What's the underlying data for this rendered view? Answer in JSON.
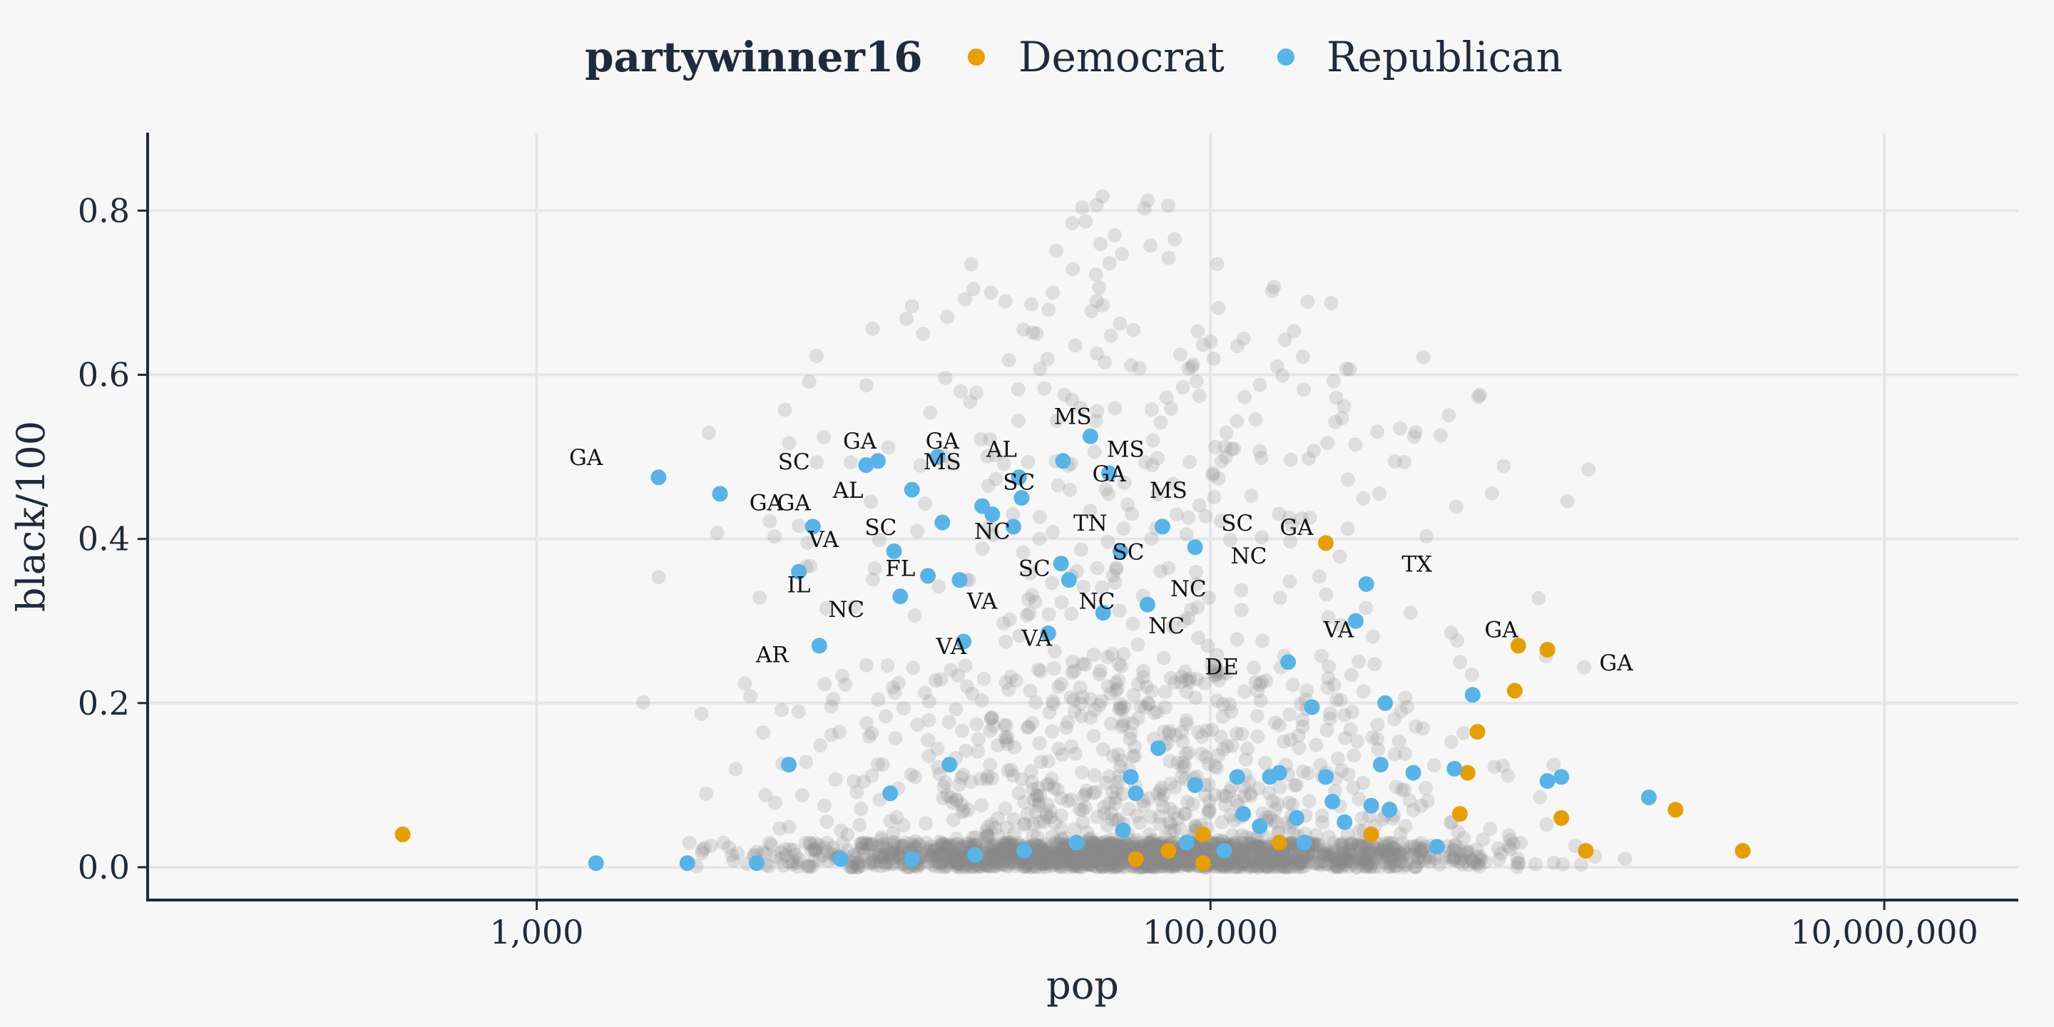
{
  "chart_data": {
    "type": "scatter",
    "title": "",
    "xlabel": "pop",
    "ylabel": "black/100",
    "x_scale": "log10",
    "xlim": [
      70,
      25000000
    ],
    "ylim": [
      -0.04,
      0.895
    ],
    "x_ticks": [
      1000,
      100000,
      10000000
    ],
    "x_tick_labels": [
      "1,000",
      "100,000",
      "10,000,000"
    ],
    "y_ticks": [
      0.0,
      0.2,
      0.4,
      0.6,
      0.8
    ],
    "y_tick_labels": [
      "0.0",
      "0.2",
      "0.4",
      "0.6",
      "0.8"
    ],
    "grid": true,
    "legend": {
      "title": "partywinner16",
      "position": "top",
      "entries": [
        {
          "label": "Democrat",
          "color": "#E69F00"
        },
        {
          "label": "Republican",
          "color": "#56B4E9"
        }
      ]
    },
    "background_color": "#888888",
    "series": [
      {
        "name": "Democrat",
        "color": "#E69F00",
        "points": [
          [
            400,
            0.04
          ],
          [
            60000,
            0.01
          ],
          [
            75000,
            0.02
          ],
          [
            95000,
            0.005
          ],
          [
            95000,
            0.04
          ],
          [
            160000,
            0.03
          ],
          [
            220000,
            0.395
          ],
          [
            300000,
            0.04
          ],
          [
            550000,
            0.065
          ],
          [
            580000,
            0.115
          ],
          [
            620000,
            0.165
          ],
          [
            800000,
            0.215
          ],
          [
            820000,
            0.27
          ],
          [
            1000000,
            0.265
          ],
          [
            1100000,
            0.06
          ],
          [
            1300000,
            0.02
          ],
          [
            2400000,
            0.07
          ],
          [
            3800000,
            0.02
          ]
        ]
      },
      {
        "name": "Republican",
        "color": "#56B4E9",
        "points": [
          [
            2300,
            0.475
          ],
          [
            3500,
            0.455
          ],
          [
            6000,
            0.36
          ],
          [
            6600,
            0.415
          ],
          [
            6900,
            0.27
          ],
          [
            5600,
            0.125
          ],
          [
            9500,
            0.49
          ],
          [
            10300,
            0.495
          ],
          [
            11500,
            0.385
          ],
          [
            12000,
            0.33
          ],
          [
            13000,
            0.46
          ],
          [
            14500,
            0.355
          ],
          [
            15500,
            0.5
          ],
          [
            16000,
            0.42
          ],
          [
            16800,
            0.125
          ],
          [
            11200,
            0.09
          ],
          [
            18000,
            0.35
          ],
          [
            18500,
            0.275
          ],
          [
            21000,
            0.44
          ],
          [
            22500,
            0.43
          ],
          [
            26000,
            0.415
          ],
          [
            27000,
            0.475
          ],
          [
            27500,
            0.45
          ],
          [
            33000,
            0.285
          ],
          [
            36500,
            0.495
          ],
          [
            36000,
            0.37
          ],
          [
            38000,
            0.35
          ],
          [
            44000,
            0.525
          ],
          [
            50000,
            0.48
          ],
          [
            48000,
            0.31
          ],
          [
            54000,
            0.385
          ],
          [
            58000,
            0.11
          ],
          [
            60000,
            0.09
          ],
          [
            65000,
            0.32
          ],
          [
            72000,
            0.415
          ],
          [
            70000,
            0.145
          ],
          [
            90000,
            0.39
          ],
          [
            90000,
            0.1
          ],
          [
            120000,
            0.11
          ],
          [
            125000,
            0.065
          ],
          [
            150000,
            0.11
          ],
          [
            170000,
            0.25
          ],
          [
            200000,
            0.195
          ],
          [
            220000,
            0.11
          ],
          [
            230000,
            0.08
          ],
          [
            250000,
            0.055
          ],
          [
            270000,
            0.3
          ],
          [
            290000,
            0.345
          ],
          [
            330000,
            0.2
          ],
          [
            320000,
            0.125
          ],
          [
            340000,
            0.07
          ],
          [
            400000,
            0.115
          ],
          [
            470000,
            0.025
          ],
          [
            530000,
            0.12
          ],
          [
            600000,
            0.21
          ],
          [
            1000000,
            0.105
          ],
          [
            1100000,
            0.11
          ],
          [
            2000000,
            0.085
          ],
          [
            1500,
            0.005
          ],
          [
            2800,
            0.005
          ],
          [
            4500,
            0.005
          ],
          [
            8000,
            0.01
          ],
          [
            13000,
            0.01
          ],
          [
            20000,
            0.015
          ],
          [
            28000,
            0.02
          ],
          [
            40000,
            0.03
          ],
          [
            55000,
            0.045
          ],
          [
            85000,
            0.03
          ],
          [
            110000,
            0.02
          ],
          [
            140000,
            0.05
          ],
          [
            180000,
            0.06
          ],
          [
            300000,
            0.075
          ],
          [
            160000,
            0.115
          ],
          [
            190000,
            0.03
          ]
        ]
      }
    ],
    "annotations": [
      {
        "text": "GA",
        "x": 1400,
        "y": 0.49
      },
      {
        "text": "GA",
        "x": 4800,
        "y": 0.435
      },
      {
        "text": "GA",
        "x": 9100,
        "y": 0.51
      },
      {
        "text": "GA",
        "x": 16000,
        "y": 0.51
      },
      {
        "text": "SC",
        "x": 5800,
        "y": 0.485
      },
      {
        "text": "MS",
        "x": 16000,
        "y": 0.485
      },
      {
        "text": "AL",
        "x": 8400,
        "y": 0.45
      },
      {
        "text": "AL",
        "x": 24000,
        "y": 0.5
      },
      {
        "text": "GA",
        "x": 5800,
        "y": 0.435
      },
      {
        "text": "MS",
        "x": 39000,
        "y": 0.54
      },
      {
        "text": "MS",
        "x": 56000,
        "y": 0.5
      },
      {
        "text": "SC",
        "x": 27000,
        "y": 0.46
      },
      {
        "text": "GA",
        "x": 50000,
        "y": 0.47
      },
      {
        "text": "MS",
        "x": 75000,
        "y": 0.45
      },
      {
        "text": "SC",
        "x": 10500,
        "y": 0.405
      },
      {
        "text": "NC",
        "x": 22500,
        "y": 0.4
      },
      {
        "text": "TN",
        "x": 44000,
        "y": 0.41
      },
      {
        "text": "SC",
        "x": 120000,
        "y": 0.41
      },
      {
        "text": "GA",
        "x": 180000,
        "y": 0.405
      },
      {
        "text": "VA",
        "x": 7100,
        "y": 0.39
      },
      {
        "text": "SC",
        "x": 57000,
        "y": 0.375
      },
      {
        "text": "NC",
        "x": 130000,
        "y": 0.37
      },
      {
        "text": "TX",
        "x": 410000,
        "y": 0.36
      },
      {
        "text": "IL",
        "x": 6000,
        "y": 0.335
      },
      {
        "text": "FL",
        "x": 12000,
        "y": 0.355
      },
      {
        "text": "SC",
        "x": 30000,
        "y": 0.355
      },
      {
        "text": "NC",
        "x": 86000,
        "y": 0.33
      },
      {
        "text": "NC",
        "x": 8300,
        "y": 0.305
      },
      {
        "text": "VA",
        "x": 21000,
        "y": 0.315
      },
      {
        "text": "NC",
        "x": 46000,
        "y": 0.315
      },
      {
        "text": "NC",
        "x": 74000,
        "y": 0.285
      },
      {
        "text": "VA",
        "x": 240000,
        "y": 0.28
      },
      {
        "text": "GA",
        "x": 730000,
        "y": 0.28
      },
      {
        "text": "VA",
        "x": 17000,
        "y": 0.26
      },
      {
        "text": "VA",
        "x": 30500,
        "y": 0.27
      },
      {
        "text": "AR",
        "x": 5000,
        "y": 0.25
      },
      {
        "text": "DE",
        "x": 108000,
        "y": 0.235
      },
      {
        "text": "GA",
        "x": 1600000,
        "y": 0.24
      }
    ]
  }
}
